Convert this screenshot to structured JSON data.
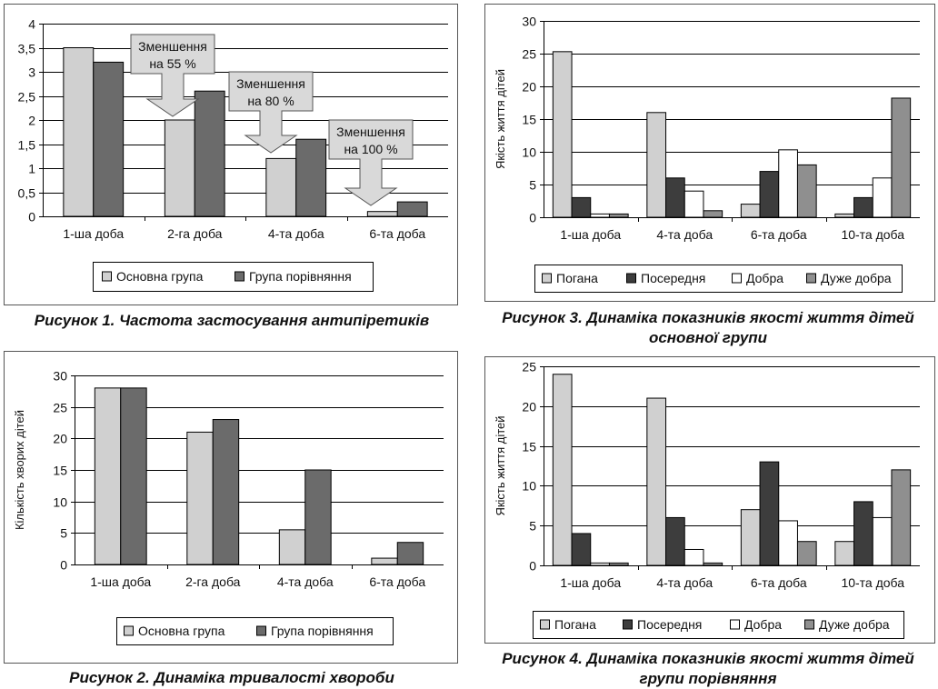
{
  "figures": [
    {
      "caption": "Рисунок 1. Частота застосування антипіретиків"
    },
    {
      "caption": "Рисунок 2. Динаміка тривалості хвороби"
    },
    {
      "caption_lines": [
        "Рисунок 3. Динаміка показників якості життя дітей",
        "основної групи"
      ]
    },
    {
      "caption_lines": [
        "Рисунок 4. Динаміка показників якості життя дітей",
        "групи порівняння"
      ]
    }
  ],
  "chart_data": [
    {
      "id": "fig1",
      "type": "bar",
      "title": "",
      "xlabel": "",
      "ylabel": "",
      "categories": [
        "1-ша доба",
        "2-га доба",
        "4-та доба",
        "6-та доба"
      ],
      "series": [
        {
          "name": "Основна група",
          "values": [
            3.5,
            2.0,
            1.2,
            0.1
          ],
          "color": "#d0d0d0"
        },
        {
          "name": "Група порівняння",
          "values": [
            3.2,
            2.6,
            1.6,
            0.3
          ],
          "color": "#6b6b6b"
        }
      ],
      "ylim": [
        0,
        4
      ],
      "yticks": [
        "0",
        "0,5",
        "1",
        "1,5",
        "2",
        "2,5",
        "3",
        "3,5",
        "4"
      ],
      "grid": true,
      "legend": "bottom",
      "annotations": [
        {
          "line1": "Зменшення",
          "line2": "на 55 %",
          "category": "2-га доба"
        },
        {
          "line1": "Зменшення",
          "line2": "на 80 %",
          "category": "4-та доба"
        },
        {
          "line1": "Зменшення",
          "line2": "на 100 %",
          "category": "6-та доба"
        }
      ]
    },
    {
      "id": "fig2",
      "type": "bar",
      "title": "",
      "xlabel": "",
      "ylabel": "Кількість хворих дітей",
      "categories": [
        "1-ша доба",
        "2-га доба",
        "4-та доба",
        "6-та доба"
      ],
      "series": [
        {
          "name": "Основна група",
          "values": [
            28,
            21,
            5.5,
            1
          ],
          "color": "#d0d0d0"
        },
        {
          "name": "Група порівняння",
          "values": [
            28,
            23,
            15,
            3.5
          ],
          "color": "#6b6b6b"
        }
      ],
      "ylim": [
        0,
        30
      ],
      "yticks": [
        "0",
        "5",
        "10",
        "15",
        "20",
        "25",
        "30"
      ],
      "grid": true,
      "legend": "bottom"
    },
    {
      "id": "fig3",
      "type": "bar",
      "title": "",
      "xlabel": "",
      "ylabel": "Якість життя дітей",
      "categories": [
        "1-ша доба",
        "4-та доба",
        "6-та доба",
        "10-та доба"
      ],
      "series": [
        {
          "name": "Погана",
          "values": [
            25.3,
            16,
            2,
            0.5
          ],
          "color": "#d0d0d0"
        },
        {
          "name": "Посередня",
          "values": [
            3,
            6,
            7,
            3
          ],
          "color": "#3d3d3d"
        },
        {
          "name": "Добра",
          "values": [
            0.5,
            4,
            10.3,
            6
          ],
          "color": "#ffffff"
        },
        {
          "name": "Дуже добра",
          "values": [
            0.5,
            1,
            8,
            18.2
          ],
          "color": "#8f8f8f"
        }
      ],
      "ylim": [
        0,
        30
      ],
      "yticks": [
        "0",
        "5",
        "10",
        "15",
        "20",
        "25",
        "30"
      ],
      "grid": true,
      "legend": "bottom"
    },
    {
      "id": "fig4",
      "type": "bar",
      "title": "",
      "xlabel": "",
      "ylabel": "Якість життя дітей",
      "categories": [
        "1-ша доба",
        "4-та доба",
        "6-та доба",
        "10-та доба"
      ],
      "series": [
        {
          "name": "Погана",
          "values": [
            24,
            21,
            7,
            3
          ],
          "color": "#d0d0d0"
        },
        {
          "name": "Посередня",
          "values": [
            4,
            6,
            13,
            8
          ],
          "color": "#3d3d3d"
        },
        {
          "name": "Добра",
          "values": [
            0.3,
            2,
            5.6,
            6
          ],
          "color": "#ffffff"
        },
        {
          "name": "Дуже добра",
          "values": [
            0.3,
            0.3,
            3,
            12
          ],
          "color": "#8f8f8f"
        }
      ],
      "ylim": [
        0,
        25
      ],
      "yticks": [
        "0",
        "5",
        "10",
        "15",
        "20",
        "25"
      ],
      "grid": true,
      "legend": "bottom"
    }
  ]
}
